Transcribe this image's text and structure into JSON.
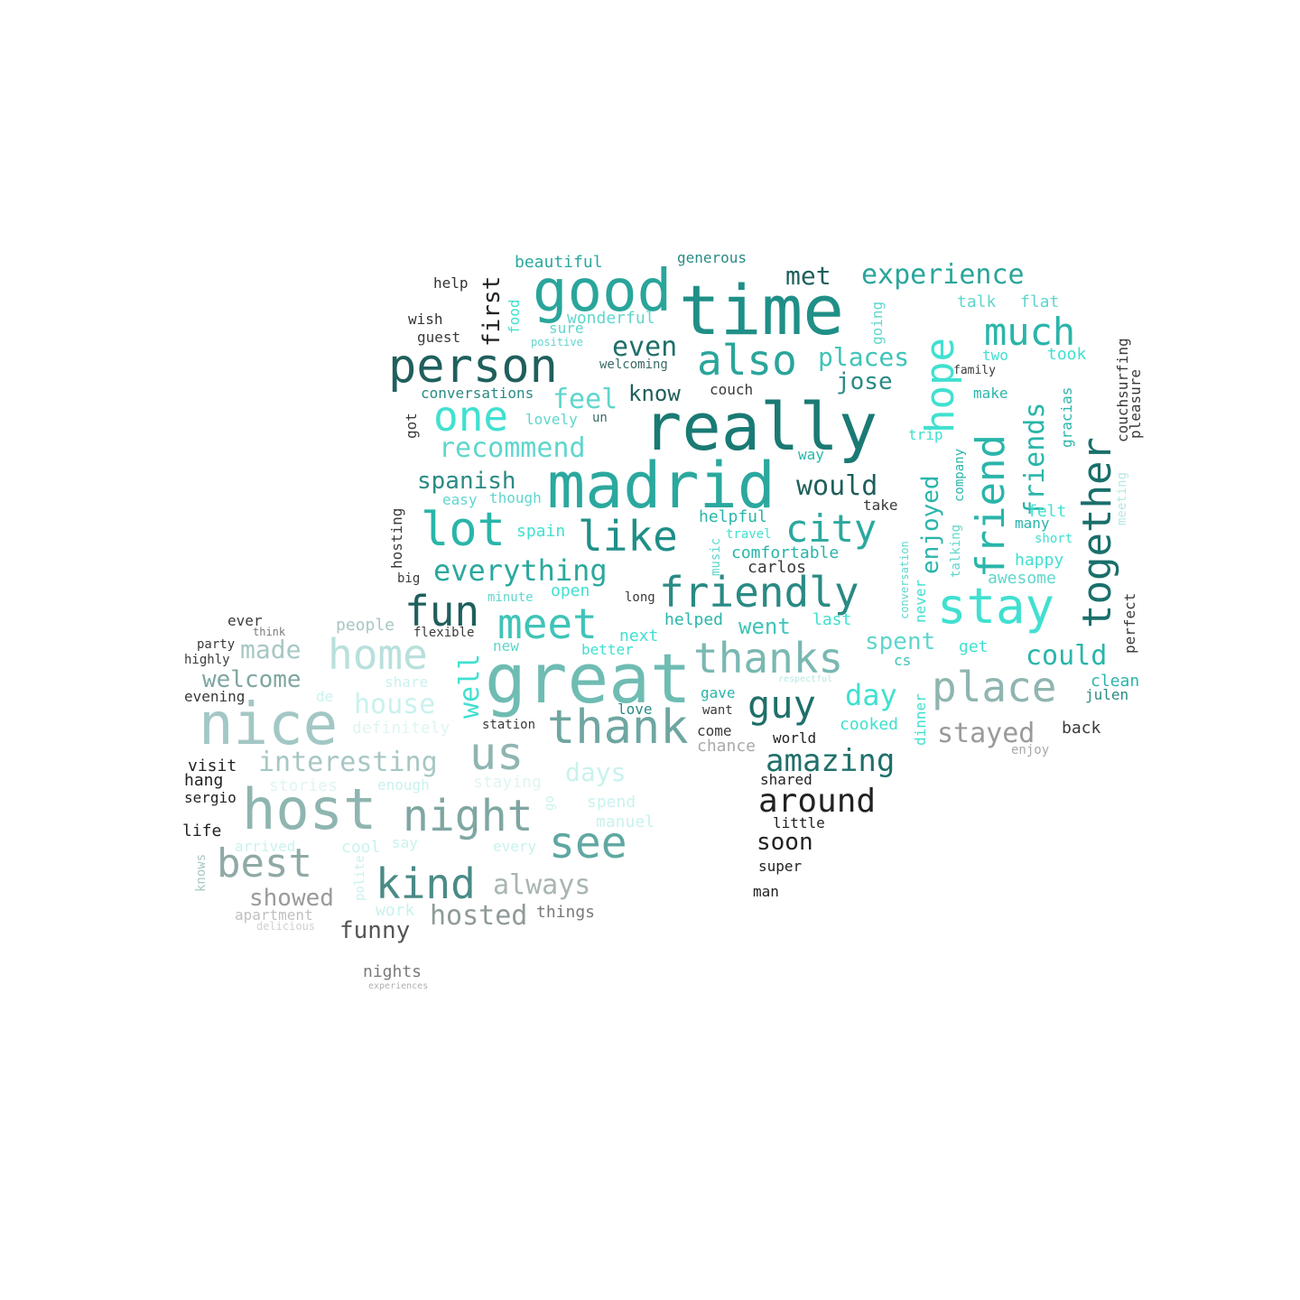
{
  "colors": {
    "background": "#ffffff",
    "palette": [
      "#1a6f6b",
      "#1f8f87",
      "#2ba89e",
      "#3fc4b8",
      "#40e0d0",
      "#5fd6cc",
      "#66b2aa",
      "#7fa6a2",
      "#8fb5b1",
      "#a7c7c4",
      "#b8e8e2",
      "#c9f2ee",
      "#9a9a9a",
      "#6e7b7a",
      "#3a3a3a",
      "#222222"
    ]
  },
  "words": [
    {
      "text": "time",
      "size": 76,
      "color": "#1f8f87"
    },
    {
      "text": "really",
      "size": 72,
      "color": "#1a7a74"
    },
    {
      "text": "madrid",
      "size": 70,
      "color": "#2ba89e"
    },
    {
      "text": "great",
      "size": 76,
      "color": "#6fbcb3"
    },
    {
      "text": "good",
      "size": 64,
      "color": "#2aa59b"
    },
    {
      "text": "nice",
      "size": 64,
      "color": "#a3c7c4"
    },
    {
      "text": "host",
      "size": 62,
      "color": "#8fb5b1"
    },
    {
      "text": "person",
      "size": 52,
      "color": "#1f5f5c"
    },
    {
      "text": "thank",
      "size": 52,
      "color": "#6ea6a1"
    },
    {
      "text": "lot",
      "size": 52,
      "color": "#2ab5aa"
    },
    {
      "text": "us",
      "size": 50,
      "color": "#8fb5b1"
    },
    {
      "text": "stay",
      "size": 54,
      "color": "#40e0d0"
    },
    {
      "text": "also",
      "size": 46,
      "color": "#2aa59b"
    },
    {
      "text": "one",
      "size": 46,
      "color": "#40e0d0"
    },
    {
      "text": "like",
      "size": 46,
      "color": "#1f8f87"
    },
    {
      "text": "meet",
      "size": 46,
      "color": "#3fc4b8"
    },
    {
      "text": "fun",
      "size": 46,
      "color": "#1f5f5c"
    },
    {
      "text": "friendly",
      "size": 46,
      "color": "#2a8a84"
    },
    {
      "text": "thanks",
      "size": 46,
      "color": "#7ab8b2"
    },
    {
      "text": "place",
      "size": 46,
      "color": "#8fb5b1"
    },
    {
      "text": "see",
      "size": 48,
      "color": "#5fa8a1"
    },
    {
      "text": "night",
      "size": 48,
      "color": "#7fa6a2"
    },
    {
      "text": "home",
      "size": 46,
      "color": "#b8e0dc"
    },
    {
      "text": "kind",
      "size": 46,
      "color": "#4a8a86"
    },
    {
      "text": "best",
      "size": 44,
      "color": "#8fa9a6"
    },
    {
      "text": "much",
      "size": 42,
      "color": "#2ab5aa"
    },
    {
      "text": "city",
      "size": 42,
      "color": "#2ba89e"
    },
    {
      "text": "guy",
      "size": 42,
      "color": "#1f6f6a"
    },
    {
      "text": "hope",
      "size": 44,
      "color": "#40e0d0"
    },
    {
      "text": "friend",
      "size": 44,
      "color": "#2ab5aa"
    },
    {
      "text": "together",
      "size": 44,
      "color": "#1a6f6b"
    },
    {
      "text": "around",
      "size": 36,
      "color": "#222222"
    },
    {
      "text": "everything",
      "size": 32,
      "color": "#2ba89e"
    },
    {
      "text": "amazing",
      "size": 34,
      "color": "#1f6f6a"
    },
    {
      "text": "interesting",
      "size": 30,
      "color": "#a7c7c4"
    },
    {
      "text": "experience",
      "size": 30,
      "color": "#2aa59b"
    },
    {
      "text": "recommend",
      "size": 30,
      "color": "#5fd6cc"
    },
    {
      "text": "would",
      "size": 30,
      "color": "#1f5f5c"
    },
    {
      "text": "even",
      "size": 30,
      "color": "#1f6f6a"
    },
    {
      "text": "feel",
      "size": 30,
      "color": "#5fd6cc"
    },
    {
      "text": "places",
      "size": 28,
      "color": "#3fc4b8"
    },
    {
      "text": "friends",
      "size": 30,
      "color": "#2ab5aa"
    },
    {
      "text": "spanish",
      "size": 26,
      "color": "#2a8a84"
    },
    {
      "text": "made",
      "size": 28,
      "color": "#a7c7c4"
    },
    {
      "text": "house",
      "size": 30,
      "color": "#c9f2ee"
    },
    {
      "text": "welcome",
      "size": 26,
      "color": "#7fa6a2"
    },
    {
      "text": "stayed",
      "size": 30,
      "color": "#9a9a9a"
    },
    {
      "text": "could",
      "size": 30,
      "color": "#2ab5aa"
    },
    {
      "text": "day",
      "size": 32,
      "color": "#40e0d0"
    },
    {
      "text": "spent",
      "size": 26,
      "color": "#5fd6cc"
    },
    {
      "text": "well",
      "size": 30,
      "color": "#40e0d0"
    },
    {
      "text": "days",
      "size": 28,
      "color": "#c9f2ee"
    },
    {
      "text": "always",
      "size": 30,
      "color": "#a9b5b3"
    },
    {
      "text": "hosted",
      "size": 30,
      "color": "#8f9a99"
    },
    {
      "text": "showed",
      "size": 26,
      "color": "#9a9a9a"
    },
    {
      "text": "funny",
      "size": 26,
      "color": "#555555"
    },
    {
      "text": "soon",
      "size": 26,
      "color": "#222222"
    },
    {
      "text": "first",
      "size": 26,
      "color": "#222222"
    },
    {
      "text": "met",
      "size": 28,
      "color": "#1f5f5c"
    },
    {
      "text": "know",
      "size": 24,
      "color": "#1f5f5c"
    },
    {
      "text": "jose",
      "size": 26,
      "color": "#2a8a84"
    },
    {
      "text": "went",
      "size": 24,
      "color": "#3fc4b8"
    },
    {
      "text": "enjoyed",
      "size": 26,
      "color": "#2ab5aa"
    },
    {
      "text": "beautiful",
      "size": 18,
      "color": "#2ba89e"
    },
    {
      "text": "generous",
      "size": 16,
      "color": "#2a8a84"
    },
    {
      "text": "help",
      "size": 16,
      "color": "#333333"
    },
    {
      "text": "wish",
      "size": 16,
      "color": "#333333"
    },
    {
      "text": "guest",
      "size": 16,
      "color": "#3a3a3a"
    },
    {
      "text": "food",
      "size": 16,
      "color": "#40e0d0"
    },
    {
      "text": "sure",
      "size": 16,
      "color": "#5fd6cc"
    },
    {
      "text": "wonderful",
      "size": 18,
      "color": "#5fd6cc"
    },
    {
      "text": "positive",
      "size": 12,
      "color": "#5fd6cc"
    },
    {
      "text": "welcoming",
      "size": 14,
      "color": "#3a6a68"
    },
    {
      "text": "conversations",
      "size": 16,
      "color": "#2a8a84"
    },
    {
      "text": "lovely",
      "size": 16,
      "color": "#5fd6cc"
    },
    {
      "text": "un",
      "size": 14,
      "color": "#3a6a68"
    },
    {
      "text": "got",
      "size": 16,
      "color": "#3a3a3a"
    },
    {
      "text": "couch",
      "size": 16,
      "color": "#3a3a3a"
    },
    {
      "text": "talk",
      "size": 18,
      "color": "#5fd6cc"
    },
    {
      "text": "flat",
      "size": 18,
      "color": "#5fd6cc"
    },
    {
      "text": "two",
      "size": 16,
      "color": "#40e0d0"
    },
    {
      "text": "took",
      "size": 18,
      "color": "#40e0d0"
    },
    {
      "text": "family",
      "size": 13,
      "color": "#3a3a3a"
    },
    {
      "text": "make",
      "size": 16,
      "color": "#2ab5aa"
    },
    {
      "text": "couchsurfing",
      "size": 16,
      "color": "#3a3a3a"
    },
    {
      "text": "pleasure",
      "size": 16,
      "color": "#3a3a3a"
    },
    {
      "text": "gracias",
      "size": 16,
      "color": "#2ab5aa"
    },
    {
      "text": "trip",
      "size": 16,
      "color": "#40e0d0"
    },
    {
      "text": "company",
      "size": 14,
      "color": "#2ab5aa"
    },
    {
      "text": "way",
      "size": 16,
      "color": "#2ab5aa"
    },
    {
      "text": "going",
      "size": 16,
      "color": "#5fd6cc"
    },
    {
      "text": "easy",
      "size": 16,
      "color": "#5fd6cc"
    },
    {
      "text": "though",
      "size": 16,
      "color": "#5fd6cc"
    },
    {
      "text": "hosting",
      "size": 16,
      "color": "#3a3a3a"
    },
    {
      "text": "helpful",
      "size": 18,
      "color": "#2ab5aa"
    },
    {
      "text": "take",
      "size": 16,
      "color": "#3a3a3a"
    },
    {
      "text": "felt",
      "size": 18,
      "color": "#40e0d0"
    },
    {
      "text": "many",
      "size": 16,
      "color": "#2ab5aa"
    },
    {
      "text": "short",
      "size": 14,
      "color": "#40e0d0"
    },
    {
      "text": "meeting",
      "size": 14,
      "color": "#b8e8e2"
    },
    {
      "text": "spain",
      "size": 18,
      "color": "#40e0d0"
    },
    {
      "text": "travel",
      "size": 14,
      "color": "#40e0d0"
    },
    {
      "text": "music",
      "size": 14,
      "color": "#5fd6cc"
    },
    {
      "text": "comfortable",
      "size": 18,
      "color": "#2ab5aa"
    },
    {
      "text": "carlos",
      "size": 18,
      "color": "#3a3a3a"
    },
    {
      "text": "talking",
      "size": 14,
      "color": "#5fd6cc"
    },
    {
      "text": "happy",
      "size": 18,
      "color": "#40e0d0"
    },
    {
      "text": "awesome",
      "size": 18,
      "color": "#5fd6cc"
    },
    {
      "text": "conversation",
      "size": 12,
      "color": "#5fd6cc"
    },
    {
      "text": "never",
      "size": 16,
      "color": "#40e0d0"
    },
    {
      "text": "perfect",
      "size": 16,
      "color": "#3a3a3a"
    },
    {
      "text": "big",
      "size": 14,
      "color": "#3a3a3a"
    },
    {
      "text": "minute",
      "size": 14,
      "color": "#5fd6cc"
    },
    {
      "text": "open",
      "size": 18,
      "color": "#40e0d0"
    },
    {
      "text": "long",
      "size": 14,
      "color": "#3a3a3a"
    },
    {
      "text": "helped",
      "size": 18,
      "color": "#2ab5aa"
    },
    {
      "text": "last",
      "size": 18,
      "color": "#40e0d0"
    },
    {
      "text": "ever",
      "size": 16,
      "color": "#3a3a3a"
    },
    {
      "text": "people",
      "size": 18,
      "color": "#a7c7c4"
    },
    {
      "text": "think",
      "size": 12,
      "color": "#7a7a7a"
    },
    {
      "text": "flexible",
      "size": 14,
      "color": "#3a3a3a"
    },
    {
      "text": "party",
      "size": 14,
      "color": "#3a3a3a"
    },
    {
      "text": "highly",
      "size": 14,
      "color": "#3a3a3a"
    },
    {
      "text": "evening",
      "size": 16,
      "color": "#3a3a3a"
    },
    {
      "text": "new",
      "size": 16,
      "color": "#5fd6cc"
    },
    {
      "text": "next",
      "size": 18,
      "color": "#40e0d0"
    },
    {
      "text": "better",
      "size": 16,
      "color": "#40e0d0"
    },
    {
      "text": "get",
      "size": 18,
      "color": "#40e0d0"
    },
    {
      "text": "cs",
      "size": 16,
      "color": "#3fc4b8"
    },
    {
      "text": "clean",
      "size": 18,
      "color": "#2ab5aa"
    },
    {
      "text": "julen",
      "size": 16,
      "color": "#2a8a84"
    },
    {
      "text": "back",
      "size": 18,
      "color": "#3a3a3a"
    },
    {
      "text": "share",
      "size": 16,
      "color": "#c9f2ee"
    },
    {
      "text": "de",
      "size": 16,
      "color": "#c9f2ee"
    },
    {
      "text": "love",
      "size": 16,
      "color": "#2a8a84"
    },
    {
      "text": "gave",
      "size": 16,
      "color": "#2ab5aa"
    },
    {
      "text": "want",
      "size": 14,
      "color": "#3a3a3a"
    },
    {
      "text": "respectful",
      "size": 10,
      "color": "#b8e8e2"
    },
    {
      "text": "dinner",
      "size": 16,
      "color": "#40e0d0"
    },
    {
      "text": "cooked",
      "size": 18,
      "color": "#40e0d0"
    },
    {
      "text": "definitely",
      "size": 18,
      "color": "#e0f5f2"
    },
    {
      "text": "station",
      "size": 14,
      "color": "#3a3a3a"
    },
    {
      "text": "come",
      "size": 16,
      "color": "#3a3a3a"
    },
    {
      "text": "world",
      "size": 16,
      "color": "#222222"
    },
    {
      "text": "chance",
      "size": 18,
      "color": "#a9a9a9"
    },
    {
      "text": "enjoy",
      "size": 14,
      "color": "#a9a9a9"
    },
    {
      "text": "visit",
      "size": 18,
      "color": "#222222"
    },
    {
      "text": "hang",
      "size": 18,
      "color": "#222222"
    },
    {
      "text": "stories",
      "size": 18,
      "color": "#e0f5f2"
    },
    {
      "text": "enough",
      "size": 16,
      "color": "#c9f2ee"
    },
    {
      "text": "staying",
      "size": 18,
      "color": "#e0f5f2"
    },
    {
      "text": "spend",
      "size": 18,
      "color": "#c9f2ee"
    },
    {
      "text": "shared",
      "size": 16,
      "color": "#222222"
    },
    {
      "text": "sergio",
      "size": 16,
      "color": "#222222"
    },
    {
      "text": "go",
      "size": 14,
      "color": "#c9f2ee"
    },
    {
      "text": "manuel",
      "size": 18,
      "color": "#c9f2ee"
    },
    {
      "text": "little",
      "size": 16,
      "color": "#222222"
    },
    {
      "text": "life",
      "size": 18,
      "color": "#222222"
    },
    {
      "text": "arrived",
      "size": 16,
      "color": "#c9f2ee"
    },
    {
      "text": "cool",
      "size": 18,
      "color": "#c9f2ee"
    },
    {
      "text": "say",
      "size": 16,
      "color": "#c9f2ee"
    },
    {
      "text": "every",
      "size": 16,
      "color": "#c9f2ee"
    },
    {
      "text": "knows",
      "size": 14,
      "color": "#a7c7c4"
    },
    {
      "text": "super",
      "size": 16,
      "color": "#222222"
    },
    {
      "text": "polite",
      "size": 14,
      "color": "#c9f2ee"
    },
    {
      "text": "man",
      "size": 16,
      "color": "#222222"
    },
    {
      "text": "work",
      "size": 18,
      "color": "#c9f2ee"
    },
    {
      "text": "things",
      "size": 18,
      "color": "#7a7a7a"
    },
    {
      "text": "apartment",
      "size": 16,
      "color": "#c0c0c0"
    },
    {
      "text": "delicious",
      "size": 12,
      "color": "#d0d0d0"
    },
    {
      "text": "nights",
      "size": 18,
      "color": "#7a7a7a"
    },
    {
      "text": "experiences",
      "size": 10,
      "color": "#b0b0b0"
    }
  ]
}
